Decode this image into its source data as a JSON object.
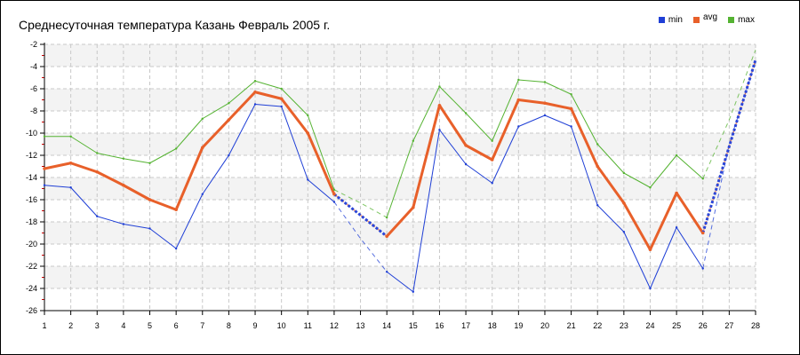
{
  "chart_data": {
    "type": "line",
    "title": "Среднесуточная температура Казань  Февраль 2005 г.",
    "xlabel": "",
    "ylabel": "",
    "x": [
      1,
      2,
      3,
      4,
      5,
      6,
      7,
      8,
      9,
      10,
      11,
      12,
      13,
      14,
      15,
      16,
      17,
      18,
      19,
      20,
      21,
      22,
      23,
      24,
      25,
      26,
      27,
      28
    ],
    "xlim": [
      1,
      28
    ],
    "ylim": [
      -26,
      -2
    ],
    "yticks": [
      -2,
      -4,
      -6,
      -8,
      -10,
      -12,
      -14,
      -16,
      -18,
      -20,
      -22,
      -24,
      -26
    ],
    "grid": true,
    "legend_position": "top-right",
    "series": [
      {
        "name": "min",
        "color": "#1f3fd6",
        "values": [
          -14.7,
          -14.9,
          -17.5,
          -18.2,
          -18.6,
          -20.4,
          -15.5,
          -12.0,
          -7.4,
          -7.6,
          -14.2,
          -16.2,
          null,
          -22.5,
          -24.3,
          -9.7,
          -12.8,
          -14.5,
          -9.4,
          -8.4,
          -9.4,
          -16.5,
          -18.9,
          -24.0,
          -18.5,
          -22.2,
          null,
          null
        ],
        "estimated_values": {
          "13": -19.5,
          "27": -11.0,
          "28": -3.5
        }
      },
      {
        "name": "avg",
        "color": "#e8602a",
        "values": [
          -13.2,
          -12.7,
          -13.5,
          -14.7,
          -16.0,
          -16.9,
          -11.3,
          -8.8,
          -6.3,
          -6.9,
          -10.0,
          -15.5,
          null,
          -19.3,
          -16.7,
          -7.5,
          -11.1,
          -12.4,
          -7.0,
          -7.3,
          -7.8,
          -13.0,
          -16.3,
          -20.5,
          -15.4,
          -19.0,
          null,
          null
        ],
        "estimated_values": {
          "13": -17.4,
          "27": -11.2,
          "28": -3.4
        }
      },
      {
        "name": "max",
        "color": "#55b332",
        "values": [
          -10.3,
          -10.3,
          -11.8,
          -12.3,
          -12.7,
          -11.4,
          -8.7,
          -7.3,
          -5.3,
          -6.0,
          -8.4,
          -15.1,
          null,
          -17.6,
          -10.7,
          -5.8,
          -8.2,
          -10.7,
          -5.2,
          -5.4,
          -6.5,
          -11.0,
          -13.6,
          -14.9,
          -12.0,
          -14.1,
          null,
          null
        ],
        "estimated_values": {
          "13": -16.3,
          "27": -8.8,
          "28": -2.5
        }
      }
    ]
  }
}
